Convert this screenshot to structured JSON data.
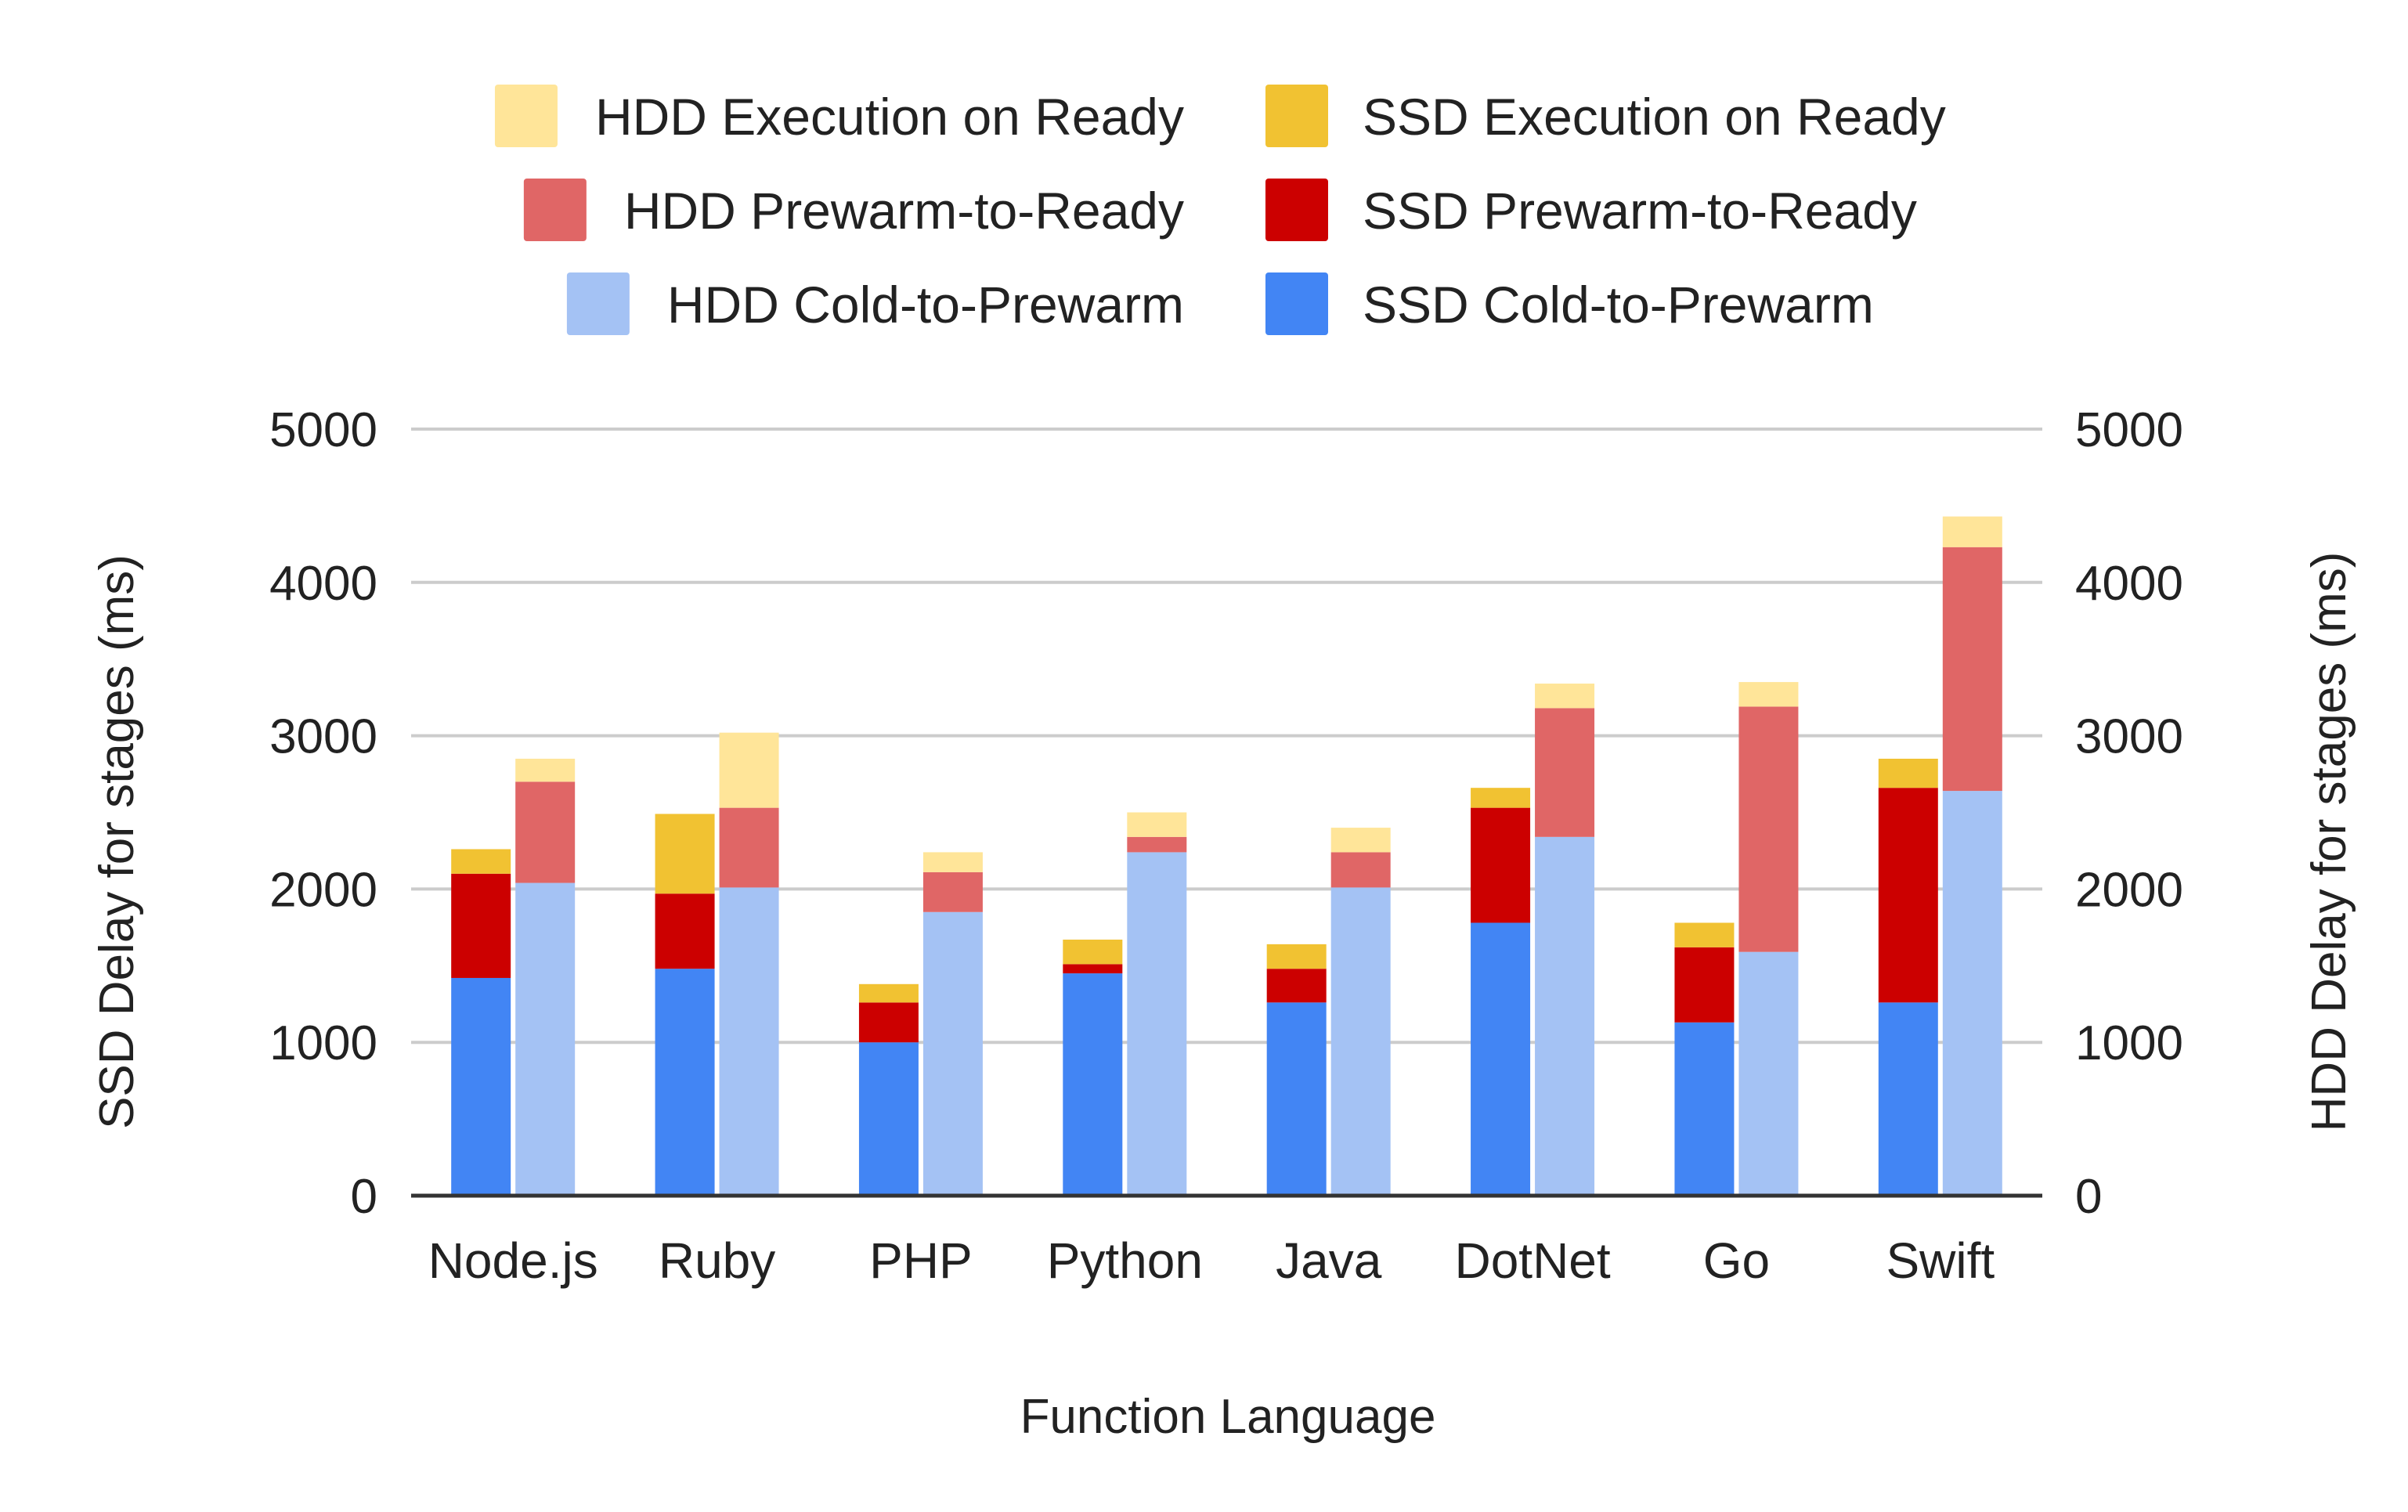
{
  "chart_data": {
    "type": "bar",
    "stacked": true,
    "grouped": true,
    "categories": [
      "Node.js",
      "Ruby",
      "PHP",
      "Python",
      "Java",
      "DotNet",
      "Go",
      "Swift"
    ],
    "xlabel": "Function Language",
    "ylabel": "SSD Delay for stages (ms)",
    "y2label": "HDD Delay for stages (ms)",
    "ylim": [
      0,
      5000
    ],
    "y2lim": [
      0,
      5000
    ],
    "yticks": [
      "0",
      "1000",
      "2000",
      "3000",
      "4000",
      "5000"
    ],
    "grid": true,
    "legend_position": "top",
    "groups": [
      {
        "name": "SSD",
        "axis": "left",
        "series": [
          {
            "name": "SSD Cold-to-Prewarm",
            "color": "#4285f4",
            "values": [
              1420,
              1480,
              1000,
              1450,
              1260,
              1780,
              1130,
              1260
            ]
          },
          {
            "name": "SSD Prewarm-to-Ready",
            "color": "#cc0000",
            "values": [
              680,
              490,
              260,
              60,
              220,
              750,
              490,
              1400
            ]
          },
          {
            "name": "SSD Execution on Ready",
            "color": "#f1c232",
            "values": [
              160,
              520,
              120,
              160,
              160,
              130,
              160,
              190
            ]
          }
        ]
      },
      {
        "name": "HDD",
        "axis": "right",
        "series": [
          {
            "name": "HDD Cold-to-Prewarm",
            "color": "#a4c2f4",
            "values": [
              2040,
              2010,
              1850,
              2240,
              2010,
              2340,
              1590,
              2640
            ]
          },
          {
            "name": "HDD Prewarm-to-Ready",
            "color": "#e06666",
            "values": [
              660,
              520,
              260,
              100,
              230,
              840,
              1600,
              1590
            ]
          },
          {
            "name": "HDD Execution on Ready",
            "color": "#ffe599",
            "values": [
              150,
              490,
              130,
              160,
              160,
              160,
              160,
              200
            ]
          }
        ]
      }
    ],
    "legend": [
      {
        "label": "HDD Execution on Ready",
        "color": "#ffe599"
      },
      {
        "label": "SSD Execution on Ready",
        "color": "#f1c232"
      },
      {
        "label": "HDD Prewarm-to-Ready",
        "color": "#e06666"
      },
      {
        "label": "SSD Prewarm-to-Ready",
        "color": "#cc0000"
      },
      {
        "label": "HDD Cold-to-Prewarm",
        "color": "#a4c2f4"
      },
      {
        "label": "SSD Cold-to-Prewarm",
        "color": "#4285f4"
      }
    ],
    "colors": {
      "grid": "#cccccc",
      "axis": "#333333",
      "text": "#222222"
    }
  }
}
